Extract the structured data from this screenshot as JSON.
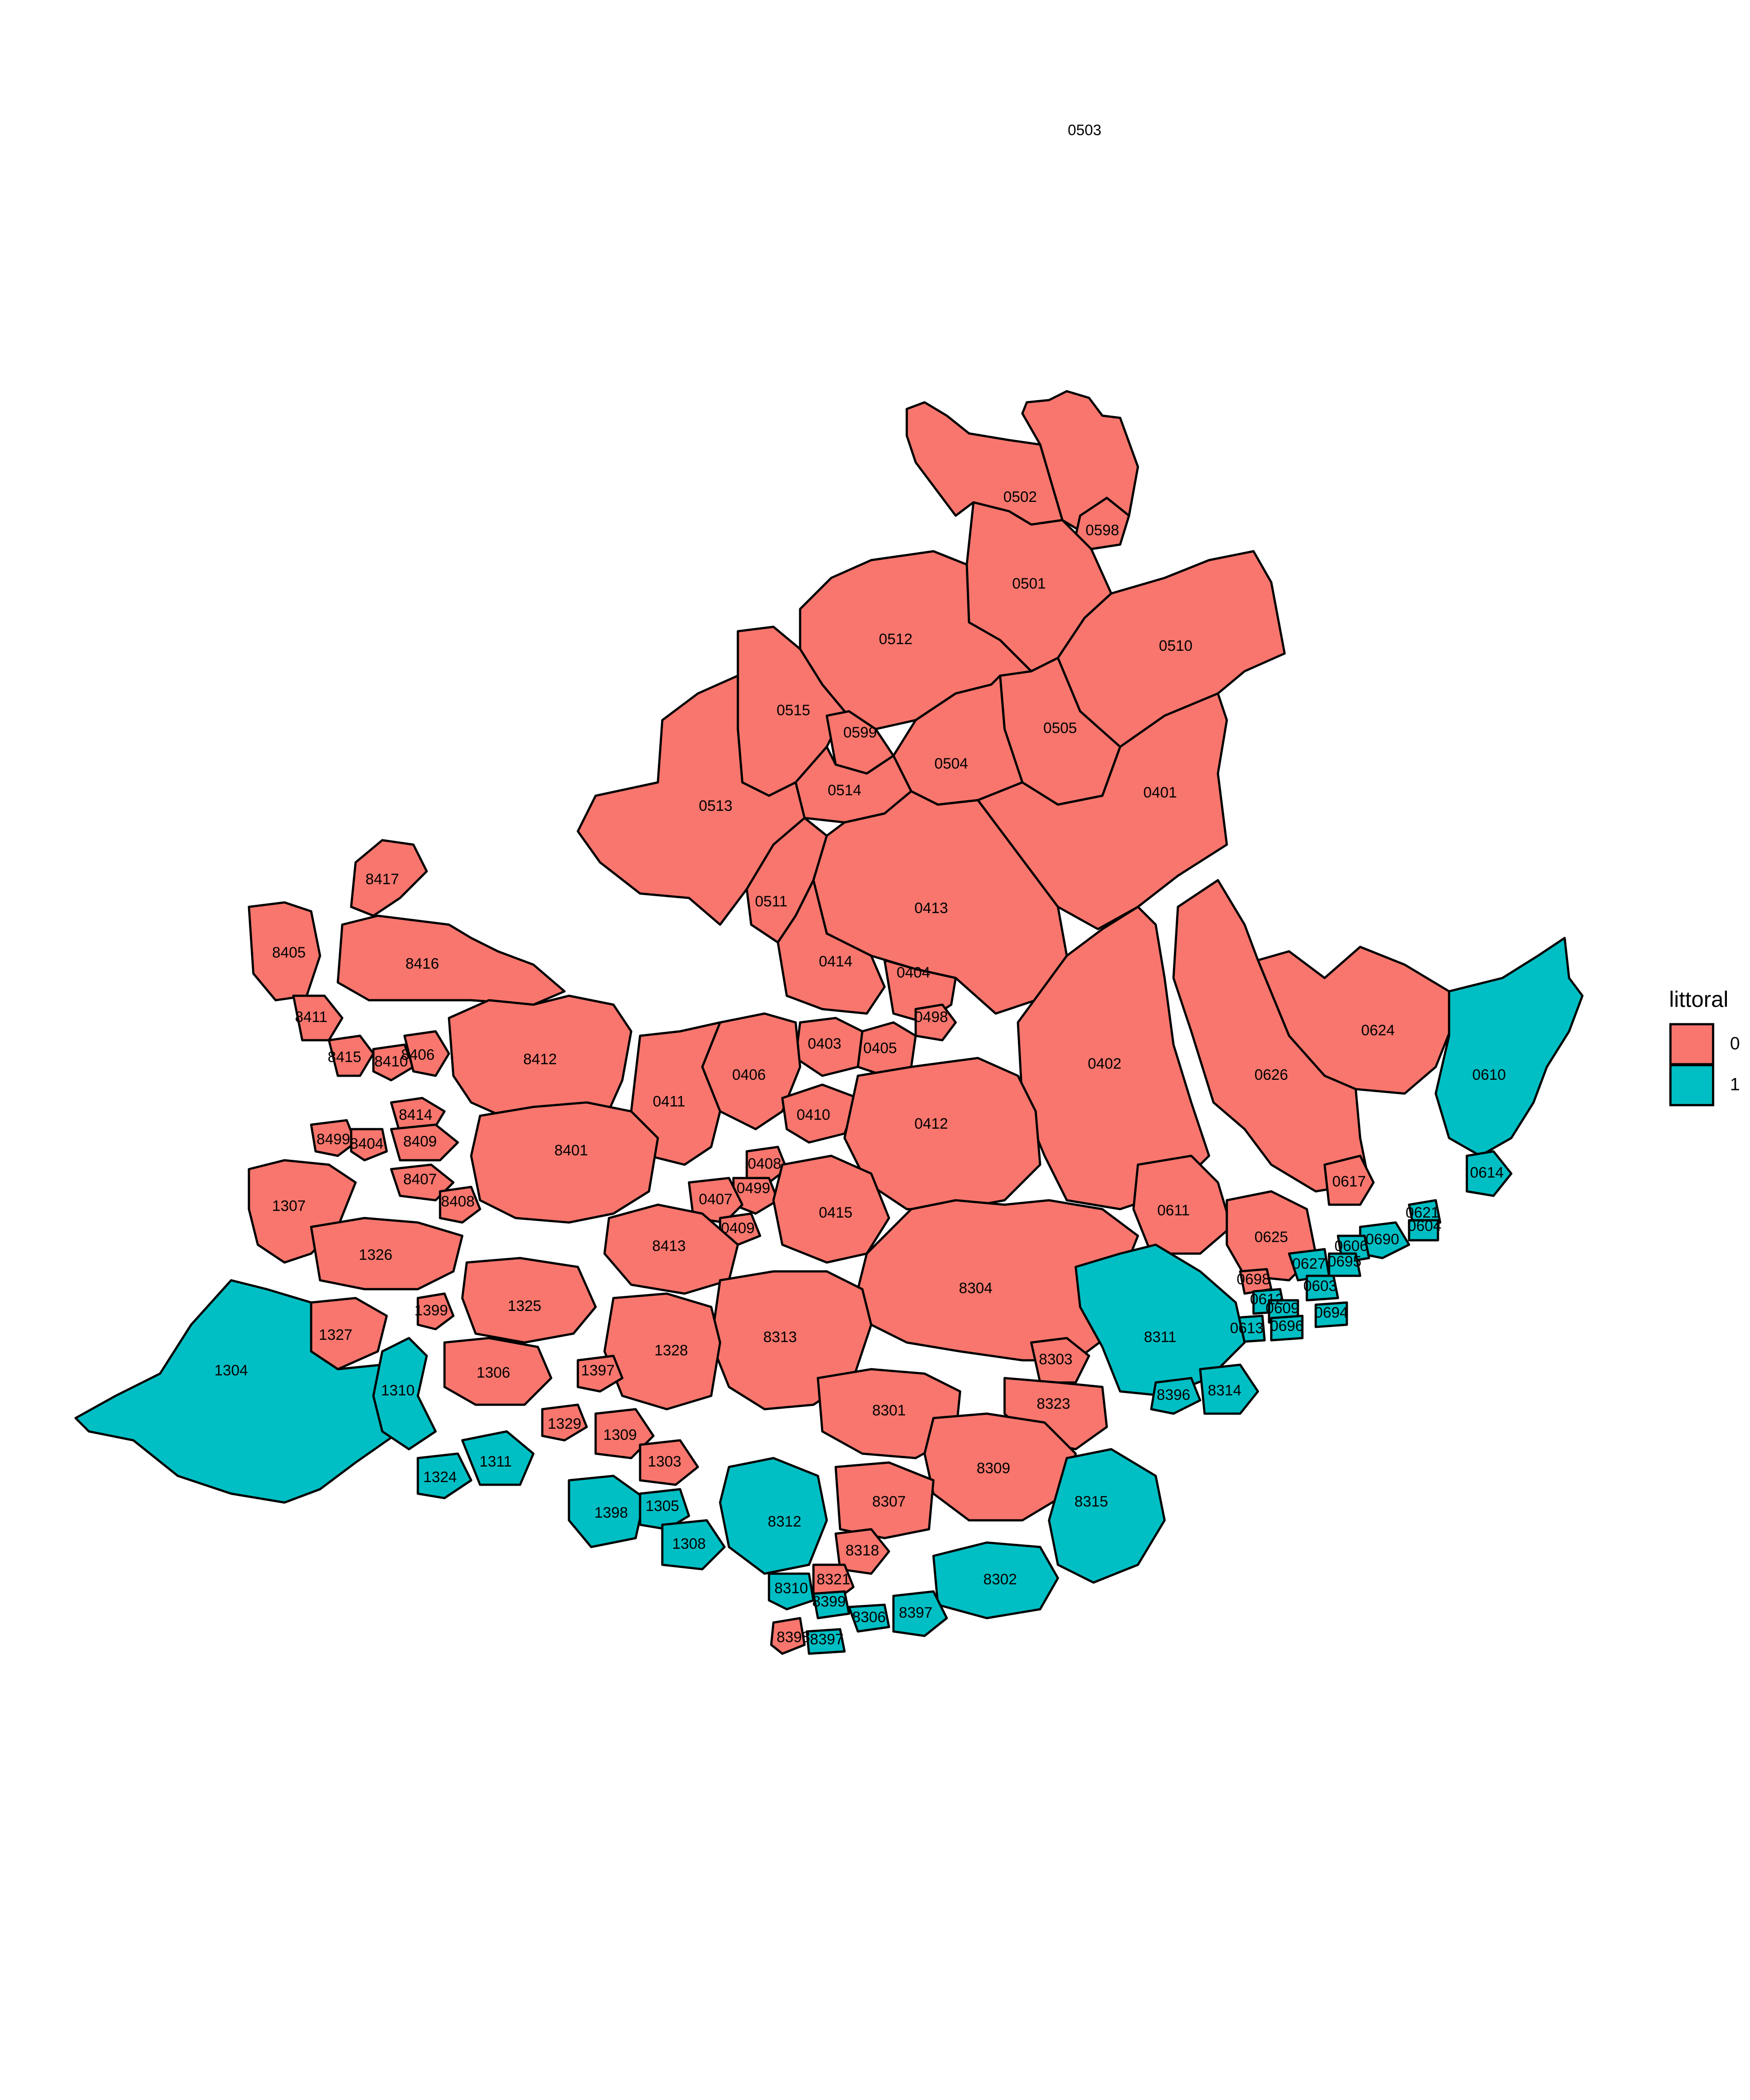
{
  "legend": {
    "title": "littoral",
    "items": [
      {
        "label": "0",
        "color": "#F8766D"
      },
      {
        "label": "1",
        "color": "#00BFC4"
      }
    ]
  },
  "zones": [
    {
      "code": "0503",
      "littoral": 0
    },
    {
      "code": "0502",
      "littoral": 0
    },
    {
      "code": "0598",
      "littoral": 0
    },
    {
      "code": "0501",
      "littoral": 0
    },
    {
      "code": "0512",
      "littoral": 0
    },
    {
      "code": "0510",
      "littoral": 0
    },
    {
      "code": "0515",
      "littoral": 0
    },
    {
      "code": "0599",
      "littoral": 0
    },
    {
      "code": "0505",
      "littoral": 0
    },
    {
      "code": "0504",
      "littoral": 0
    },
    {
      "code": "0514",
      "littoral": 0
    },
    {
      "code": "0513",
      "littoral": 0
    },
    {
      "code": "0401",
      "littoral": 0
    },
    {
      "code": "0511",
      "littoral": 0
    },
    {
      "code": "0413",
      "littoral": 0
    },
    {
      "code": "8417",
      "littoral": 0
    },
    {
      "code": "0414",
      "littoral": 0
    },
    {
      "code": "0404",
      "littoral": 0
    },
    {
      "code": "8405",
      "littoral": 0
    },
    {
      "code": "8416",
      "littoral": 0
    },
    {
      "code": "0498",
      "littoral": 0
    },
    {
      "code": "0624",
      "littoral": 0
    },
    {
      "code": "8411",
      "littoral": 0
    },
    {
      "code": "0403",
      "littoral": 0
    },
    {
      "code": "0405",
      "littoral": 0
    },
    {
      "code": "8415",
      "littoral": 0
    },
    {
      "code": "8410",
      "littoral": 0
    },
    {
      "code": "8406",
      "littoral": 0
    },
    {
      "code": "8412",
      "littoral": 0
    },
    {
      "code": "0406",
      "littoral": 0
    },
    {
      "code": "0402",
      "littoral": 0
    },
    {
      "code": "0626",
      "littoral": 0
    },
    {
      "code": "0411",
      "littoral": 0
    },
    {
      "code": "0410",
      "littoral": 0
    },
    {
      "code": "8414",
      "littoral": 0
    },
    {
      "code": "0412",
      "littoral": 0
    },
    {
      "code": "8499",
      "littoral": 0
    },
    {
      "code": "8404",
      "littoral": 0
    },
    {
      "code": "8409",
      "littoral": 0
    },
    {
      "code": "8401",
      "littoral": 0
    },
    {
      "code": "0408",
      "littoral": 0
    },
    {
      "code": "8407",
      "littoral": 0
    },
    {
      "code": "0617",
      "littoral": 0
    },
    {
      "code": "0499",
      "littoral": 0
    },
    {
      "code": "1307",
      "littoral": 0
    },
    {
      "code": "8408",
      "littoral": 0
    },
    {
      "code": "0407",
      "littoral": 0
    },
    {
      "code": "0415",
      "littoral": 0
    },
    {
      "code": "0611",
      "littoral": 0
    },
    {
      "code": "0409",
      "littoral": 0
    },
    {
      "code": "0625",
      "littoral": 0
    },
    {
      "code": "8413",
      "littoral": 0
    },
    {
      "code": "1326",
      "littoral": 0
    },
    {
      "code": "0698",
      "littoral": 0
    },
    {
      "code": "8304",
      "littoral": 0
    },
    {
      "code": "1325",
      "littoral": 0
    },
    {
      "code": "1399",
      "littoral": 0
    },
    {
      "code": "1327",
      "littoral": 0
    },
    {
      "code": "8313",
      "littoral": 0
    },
    {
      "code": "1328",
      "littoral": 0
    },
    {
      "code": "1306",
      "littoral": 0
    },
    {
      "code": "8303",
      "littoral": 0
    },
    {
      "code": "1397",
      "littoral": 0
    },
    {
      "code": "8323",
      "littoral": 0
    },
    {
      "code": "8301",
      "littoral": 0
    },
    {
      "code": "1329",
      "littoral": 0
    },
    {
      "code": "1309",
      "littoral": 0
    },
    {
      "code": "1303",
      "littoral": 0
    },
    {
      "code": "8309",
      "littoral": 0
    },
    {
      "code": "8307",
      "littoral": 0
    },
    {
      "code": "8318",
      "littoral": 0
    },
    {
      "code": "8321",
      "littoral": 0
    },
    {
      "code": "8398",
      "littoral": 0
    },
    {
      "code": "0610",
      "littoral": 1
    },
    {
      "code": "0614",
      "littoral": 1
    },
    {
      "code": "0621",
      "littoral": 1
    },
    {
      "code": "0604",
      "littoral": 1
    },
    {
      "code": "0690",
      "littoral": 1
    },
    {
      "code": "0606",
      "littoral": 1
    },
    {
      "code": "0627",
      "littoral": 1
    },
    {
      "code": "0695",
      "littoral": 1
    },
    {
      "code": "0603",
      "littoral": 1
    },
    {
      "code": "0612",
      "littoral": 1
    },
    {
      "code": "0694",
      "littoral": 1
    },
    {
      "code": "0609",
      "littoral": 1
    },
    {
      "code": "0613",
      "littoral": 1
    },
    {
      "code": "0696",
      "littoral": 1
    },
    {
      "code": "8311",
      "littoral": 1
    },
    {
      "code": "8396",
      "littoral": 1
    },
    {
      "code": "8314",
      "littoral": 1
    },
    {
      "code": "1304",
      "littoral": 1
    },
    {
      "code": "1310",
      "littoral": 1
    },
    {
      "code": "1324",
      "littoral": 1
    },
    {
      "code": "1311",
      "littoral": 1
    },
    {
      "code": "8315",
      "littoral": 1
    },
    {
      "code": "1398",
      "littoral": 1
    },
    {
      "code": "1305",
      "littoral": 1
    },
    {
      "code": "8312",
      "littoral": 1
    },
    {
      "code": "1308",
      "littoral": 1
    },
    {
      "code": "8302",
      "littoral": 1
    },
    {
      "code": "8310",
      "littoral": 1
    },
    {
      "code": "8399",
      "littoral": 1
    },
    {
      "code": "8397",
      "littoral": 1
    },
    {
      "code": "8306",
      "littoral": 1
    },
    {
      "code": "8397b",
      "littoral": 1
    }
  ]
}
